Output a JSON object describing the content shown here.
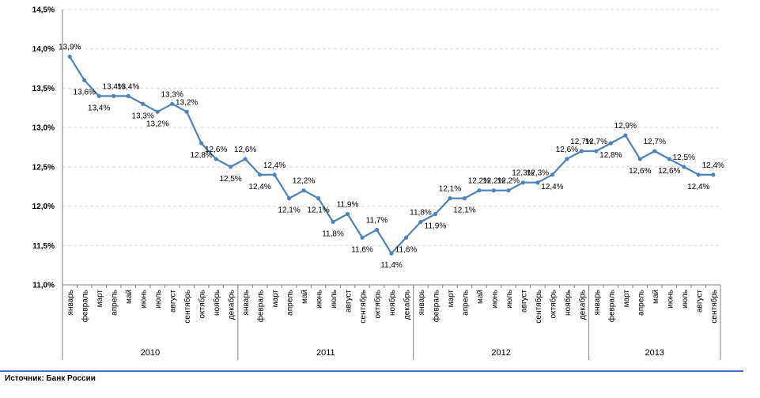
{
  "chart_data": {
    "type": "line",
    "ylim": [
      11.0,
      14.5
    ],
    "y_ticks": [
      "11,0%",
      "11,5%",
      "12,0%",
      "12,5%",
      "13,0%",
      "13,5%",
      "14,0%",
      "14,5%"
    ],
    "y_tick_values": [
      11.0,
      11.5,
      12.0,
      12.5,
      13.0,
      13.5,
      14.0,
      14.5
    ],
    "grid": true,
    "line_color": "#4f81bd",
    "categories": [
      "январь",
      "февраль",
      "март",
      "апрель",
      "май",
      "июнь",
      "июль",
      "август",
      "сентябрь",
      "октябрь",
      "ноябрь",
      "декабрь",
      "январь",
      "февраль",
      "март",
      "апрель",
      "май",
      "июнь",
      "июль",
      "август",
      "сентябрь",
      "октябрь",
      "ноябрь",
      "декабрь",
      "январь",
      "февраль",
      "март",
      "апрель",
      "май",
      "июнь",
      "июль",
      "август",
      "сентябрь",
      "октябрь",
      "ноябрь",
      "декабрь",
      "январь",
      "февраль",
      "март",
      "апрель",
      "май",
      "июнь",
      "июль",
      "август",
      "сентябрь"
    ],
    "years": [
      {
        "label": "2010",
        "count": 12
      },
      {
        "label": "2011",
        "count": 12
      },
      {
        "label": "2012",
        "count": 12
      },
      {
        "label": "2013",
        "count": 9
      }
    ],
    "values": [
      13.9,
      13.6,
      13.4,
      13.4,
      13.4,
      13.3,
      13.2,
      13.3,
      13.2,
      12.8,
      12.6,
      12.5,
      12.6,
      12.4,
      12.4,
      12.1,
      12.2,
      12.1,
      11.8,
      11.9,
      11.6,
      11.7,
      11.4,
      11.6,
      11.8,
      11.9,
      12.1,
      12.1,
      12.2,
      12.2,
      12.2,
      12.3,
      12.3,
      12.4,
      12.6,
      12.7,
      12.7,
      12.8,
      12.9,
      12.6,
      12.7,
      12.6,
      12.5,
      12.4,
      12.4
    ],
    "data_labels": [
      "13,9%",
      "13,6%",
      "13,4%",
      "13,4%",
      "13,4%",
      "13,3%",
      "13,2%",
      "13,3%",
      "13,2%",
      "12,8%",
      "12,6%",
      "12,5%",
      "12,6%",
      "12,4%",
      "12,4%",
      "12,1%",
      "12,2%",
      "12,1%",
      "11,8%",
      "11,9%",
      "11,6%",
      "11,7%",
      "11,4%",
      "11,6%",
      "11,8%",
      "11,9%",
      "12,1%",
      "12,1%",
      "12,2%",
      "12,2%",
      "12,2%",
      "12,3%",
      "12,3%",
      "12,4%",
      "12,6%",
      "12,7%",
      "12,7%",
      "12,8%",
      "12,9%",
      "12,6%",
      "12,7%",
      "12,6%",
      "12,5%",
      "12,4%",
      "12,4%"
    ]
  },
  "source": "Источник: Банк России"
}
